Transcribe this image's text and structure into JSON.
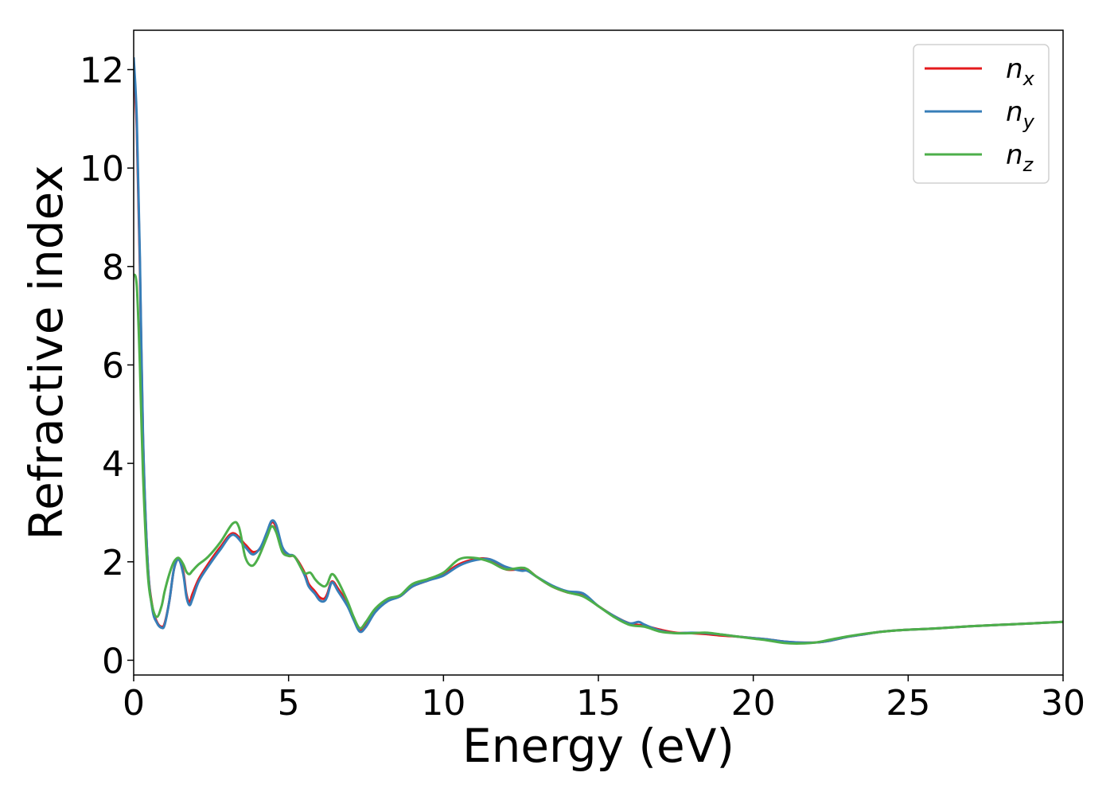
{
  "chart_data": {
    "type": "line",
    "xlabel": "Energy (eV)",
    "ylabel": "Refractive index",
    "xlim": [
      0,
      30
    ],
    "ylim": [
      -0.3,
      12.8
    ],
    "xticks": [
      0,
      5,
      10,
      15,
      20,
      25,
      30
    ],
    "yticks": [
      0,
      2,
      4,
      6,
      8,
      10,
      12
    ],
    "grid": false,
    "legend_position": "top-right",
    "series": [
      {
        "name": "n",
        "subscript": "x",
        "color": "#e41a1c",
        "points": [
          [
            0,
            12.0
          ],
          [
            0.1,
            10.8
          ],
          [
            0.2,
            8.0
          ],
          [
            0.3,
            4.5
          ],
          [
            0.45,
            2.0
          ],
          [
            0.6,
            1.1
          ],
          [
            0.75,
            0.78
          ],
          [
            0.9,
            0.68
          ],
          [
            1.0,
            0.75
          ],
          [
            1.15,
            1.2
          ],
          [
            1.3,
            1.85
          ],
          [
            1.45,
            2.05
          ],
          [
            1.6,
            1.8
          ],
          [
            1.7,
            1.35
          ],
          [
            1.8,
            1.18
          ],
          [
            1.9,
            1.35
          ],
          [
            2.1,
            1.65
          ],
          [
            2.4,
            1.95
          ],
          [
            2.8,
            2.3
          ],
          [
            3.2,
            2.58
          ],
          [
            3.6,
            2.35
          ],
          [
            3.85,
            2.2
          ],
          [
            4.1,
            2.28
          ],
          [
            4.3,
            2.55
          ],
          [
            4.45,
            2.8
          ],
          [
            4.6,
            2.7
          ],
          [
            4.8,
            2.25
          ],
          [
            5.0,
            2.12
          ],
          [
            5.2,
            2.1
          ],
          [
            5.5,
            1.8
          ],
          [
            5.65,
            1.55
          ],
          [
            5.85,
            1.4
          ],
          [
            6.0,
            1.28
          ],
          [
            6.15,
            1.25
          ],
          [
            6.25,
            1.35
          ],
          [
            6.4,
            1.6
          ],
          [
            6.6,
            1.45
          ],
          [
            6.9,
            1.15
          ],
          [
            7.1,
            0.85
          ],
          [
            7.3,
            0.6
          ],
          [
            7.5,
            0.72
          ],
          [
            7.8,
            1.0
          ],
          [
            8.2,
            1.22
          ],
          [
            8.6,
            1.3
          ],
          [
            9.0,
            1.5
          ],
          [
            9.5,
            1.62
          ],
          [
            10.0,
            1.75
          ],
          [
            10.5,
            1.95
          ],
          [
            11.0,
            2.05
          ],
          [
            11.5,
            2.05
          ],
          [
            12.0,
            1.85
          ],
          [
            12.5,
            1.85
          ],
          [
            12.7,
            1.85
          ],
          [
            13.0,
            1.7
          ],
          [
            13.5,
            1.5
          ],
          [
            14.0,
            1.38
          ],
          [
            14.5,
            1.32
          ],
          [
            15.0,
            1.1
          ],
          [
            15.5,
            0.9
          ],
          [
            16.0,
            0.75
          ],
          [
            16.5,
            0.7
          ],
          [
            17.0,
            0.62
          ],
          [
            17.5,
            0.56
          ],
          [
            18.0,
            0.55
          ],
          [
            18.5,
            0.53
          ],
          [
            19.0,
            0.5
          ],
          [
            19.5,
            0.48
          ],
          [
            20.0,
            0.45
          ],
          [
            20.5,
            0.42
          ],
          [
            21.0,
            0.38
          ],
          [
            21.5,
            0.36
          ],
          [
            22.0,
            0.36
          ],
          [
            22.5,
            0.4
          ],
          [
            23.0,
            0.47
          ],
          [
            23.5,
            0.52
          ],
          [
            24.0,
            0.57
          ],
          [
            24.5,
            0.6
          ],
          [
            25.0,
            0.62
          ],
          [
            26.0,
            0.65
          ],
          [
            27.0,
            0.69
          ],
          [
            28.0,
            0.72
          ],
          [
            29.0,
            0.75
          ],
          [
            30.0,
            0.78
          ]
        ]
      },
      {
        "name": "n",
        "subscript": "y",
        "color": "#377eb8",
        "points": [
          [
            0,
            12.25
          ],
          [
            0.1,
            11.0
          ],
          [
            0.2,
            8.2
          ],
          [
            0.3,
            4.6
          ],
          [
            0.45,
            2.0
          ],
          [
            0.6,
            1.05
          ],
          [
            0.75,
            0.76
          ],
          [
            0.9,
            0.66
          ],
          [
            1.0,
            0.72
          ],
          [
            1.15,
            1.2
          ],
          [
            1.3,
            1.85
          ],
          [
            1.45,
            2.05
          ],
          [
            1.6,
            1.75
          ],
          [
            1.7,
            1.3
          ],
          [
            1.8,
            1.12
          ],
          [
            1.9,
            1.25
          ],
          [
            2.1,
            1.6
          ],
          [
            2.4,
            1.9
          ],
          [
            2.8,
            2.25
          ],
          [
            3.2,
            2.55
          ],
          [
            3.6,
            2.3
          ],
          [
            3.85,
            2.15
          ],
          [
            4.1,
            2.3
          ],
          [
            4.3,
            2.6
          ],
          [
            4.45,
            2.83
          ],
          [
            4.6,
            2.75
          ],
          [
            4.8,
            2.3
          ],
          [
            5.0,
            2.15
          ],
          [
            5.2,
            2.1
          ],
          [
            5.5,
            1.75
          ],
          [
            5.65,
            1.5
          ],
          [
            5.85,
            1.35
          ],
          [
            6.0,
            1.22
          ],
          [
            6.15,
            1.2
          ],
          [
            6.25,
            1.3
          ],
          [
            6.4,
            1.58
          ],
          [
            6.6,
            1.4
          ],
          [
            6.9,
            1.1
          ],
          [
            7.1,
            0.82
          ],
          [
            7.3,
            0.58
          ],
          [
            7.5,
            0.68
          ],
          [
            7.8,
            0.98
          ],
          [
            8.2,
            1.2
          ],
          [
            8.6,
            1.3
          ],
          [
            9.0,
            1.5
          ],
          [
            9.5,
            1.62
          ],
          [
            10.0,
            1.72
          ],
          [
            10.5,
            1.92
          ],
          [
            11.0,
            2.03
          ],
          [
            11.5,
            2.05
          ],
          [
            12.0,
            1.9
          ],
          [
            12.5,
            1.82
          ],
          [
            12.7,
            1.82
          ],
          [
            13.0,
            1.7
          ],
          [
            13.5,
            1.52
          ],
          [
            14.0,
            1.4
          ],
          [
            14.5,
            1.36
          ],
          [
            15.0,
            1.1
          ],
          [
            15.5,
            0.9
          ],
          [
            16.0,
            0.75
          ],
          [
            16.3,
            0.78
          ],
          [
            16.5,
            0.72
          ],
          [
            17.0,
            0.6
          ],
          [
            17.5,
            0.55
          ],
          [
            18.0,
            0.56
          ],
          [
            18.5,
            0.55
          ],
          [
            19.0,
            0.52
          ],
          [
            19.5,
            0.48
          ],
          [
            20.0,
            0.45
          ],
          [
            20.5,
            0.42
          ],
          [
            21.0,
            0.38
          ],
          [
            21.5,
            0.36
          ],
          [
            22.0,
            0.36
          ],
          [
            22.5,
            0.4
          ],
          [
            23.0,
            0.47
          ],
          [
            23.5,
            0.52
          ],
          [
            24.0,
            0.57
          ],
          [
            24.5,
            0.6
          ],
          [
            25.0,
            0.62
          ],
          [
            26.0,
            0.65
          ],
          [
            27.0,
            0.69
          ],
          [
            28.0,
            0.72
          ],
          [
            29.0,
            0.75
          ],
          [
            30.0,
            0.78
          ]
        ]
      },
      {
        "name": "n",
        "subscript": "z",
        "color": "#4daf4a",
        "points": [
          [
            0,
            7.85
          ],
          [
            0.1,
            7.6
          ],
          [
            0.2,
            6.0
          ],
          [
            0.3,
            3.8
          ],
          [
            0.45,
            1.8
          ],
          [
            0.6,
            1.1
          ],
          [
            0.75,
            0.88
          ],
          [
            0.9,
            1.1
          ],
          [
            1.0,
            1.4
          ],
          [
            1.15,
            1.75
          ],
          [
            1.3,
            2.0
          ],
          [
            1.45,
            2.08
          ],
          [
            1.6,
            1.95
          ],
          [
            1.7,
            1.8
          ],
          [
            1.8,
            1.75
          ],
          [
            1.9,
            1.82
          ],
          [
            2.1,
            1.95
          ],
          [
            2.4,
            2.1
          ],
          [
            2.8,
            2.4
          ],
          [
            3.2,
            2.78
          ],
          [
            3.4,
            2.7
          ],
          [
            3.6,
            2.1
          ],
          [
            3.8,
            1.92
          ],
          [
            4.0,
            2.05
          ],
          [
            4.3,
            2.5
          ],
          [
            4.45,
            2.72
          ],
          [
            4.6,
            2.6
          ],
          [
            4.8,
            2.2
          ],
          [
            5.0,
            2.12
          ],
          [
            5.2,
            2.1
          ],
          [
            5.5,
            1.78
          ],
          [
            5.7,
            1.78
          ],
          [
            5.85,
            1.65
          ],
          [
            6.0,
            1.55
          ],
          [
            6.15,
            1.5
          ],
          [
            6.25,
            1.55
          ],
          [
            6.4,
            1.75
          ],
          [
            6.6,
            1.6
          ],
          [
            6.9,
            1.2
          ],
          [
            7.1,
            0.88
          ],
          [
            7.3,
            0.65
          ],
          [
            7.5,
            0.78
          ],
          [
            7.8,
            1.05
          ],
          [
            8.2,
            1.25
          ],
          [
            8.6,
            1.32
          ],
          [
            9.0,
            1.55
          ],
          [
            9.5,
            1.65
          ],
          [
            10.0,
            1.78
          ],
          [
            10.5,
            2.05
          ],
          [
            11.0,
            2.08
          ],
          [
            11.5,
            2.0
          ],
          [
            12.0,
            1.85
          ],
          [
            12.5,
            1.88
          ],
          [
            12.7,
            1.85
          ],
          [
            13.0,
            1.7
          ],
          [
            13.5,
            1.5
          ],
          [
            14.0,
            1.38
          ],
          [
            14.5,
            1.3
          ],
          [
            15.0,
            1.1
          ],
          [
            15.5,
            0.88
          ],
          [
            16.0,
            0.72
          ],
          [
            16.5,
            0.68
          ],
          [
            17.0,
            0.58
          ],
          [
            17.5,
            0.55
          ],
          [
            18.0,
            0.55
          ],
          [
            18.5,
            0.56
          ],
          [
            19.0,
            0.52
          ],
          [
            19.5,
            0.48
          ],
          [
            20.0,
            0.44
          ],
          [
            20.5,
            0.4
          ],
          [
            21.0,
            0.35
          ],
          [
            21.5,
            0.34
          ],
          [
            22.0,
            0.36
          ],
          [
            22.5,
            0.42
          ],
          [
            23.0,
            0.48
          ],
          [
            23.5,
            0.53
          ],
          [
            24.0,
            0.57
          ],
          [
            24.5,
            0.6
          ],
          [
            25.0,
            0.62
          ],
          [
            26.0,
            0.65
          ],
          [
            27.0,
            0.69
          ],
          [
            28.0,
            0.72
          ],
          [
            29.0,
            0.75
          ],
          [
            30.0,
            0.78
          ]
        ]
      }
    ]
  }
}
